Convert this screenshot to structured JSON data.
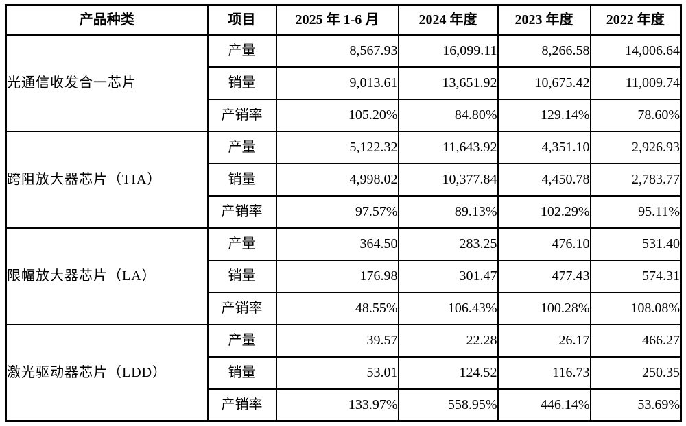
{
  "table": {
    "headers": [
      "产品种类",
      "项目",
      "2025 年 1-6 月",
      "2024 年度",
      "2023 年度",
      "2022 年度"
    ],
    "groups": [
      {
        "product": "光通信收发合一芯片",
        "rows": [
          {
            "label": "产量",
            "values": [
              "8,567.93",
              "16,099.11",
              "8,266.58",
              "14,006.64"
            ]
          },
          {
            "label": "销量",
            "values": [
              "9,013.61",
              "13,651.92",
              "10,675.42",
              "11,009.74"
            ]
          },
          {
            "label": "产销率",
            "values": [
              "105.20%",
              "84.80%",
              "129.14%",
              "78.60%"
            ]
          }
        ]
      },
      {
        "product": "跨阻放大器芯片（TIA）",
        "rows": [
          {
            "label": "产量",
            "values": [
              "5,122.32",
              "11,643.92",
              "4,351.10",
              "2,926.93"
            ]
          },
          {
            "label": "销量",
            "values": [
              "4,998.02",
              "10,377.84",
              "4,450.78",
              "2,783.77"
            ]
          },
          {
            "label": "产销率",
            "values": [
              "97.57%",
              "89.13%",
              "102.29%",
              "95.11%"
            ]
          }
        ]
      },
      {
        "product": "限幅放大器芯片（LA）",
        "rows": [
          {
            "label": "产量",
            "values": [
              "364.50",
              "283.25",
              "476.10",
              "531.40"
            ]
          },
          {
            "label": "销量",
            "values": [
              "176.98",
              "301.47",
              "477.43",
              "574.31"
            ]
          },
          {
            "label": "产销率",
            "values": [
              "48.55%",
              "106.43%",
              "100.28%",
              "108.08%"
            ]
          }
        ]
      },
      {
        "product": "激光驱动器芯片（LDD）",
        "rows": [
          {
            "label": "产量",
            "values": [
              "39.57",
              "22.28",
              "26.17",
              "466.27"
            ]
          },
          {
            "label": "销量",
            "values": [
              "53.01",
              "124.52",
              "116.73",
              "250.35"
            ]
          },
          {
            "label": "产销率",
            "values": [
              "133.97%",
              "558.95%",
              "446.14%",
              "53.69%"
            ]
          }
        ]
      }
    ]
  }
}
